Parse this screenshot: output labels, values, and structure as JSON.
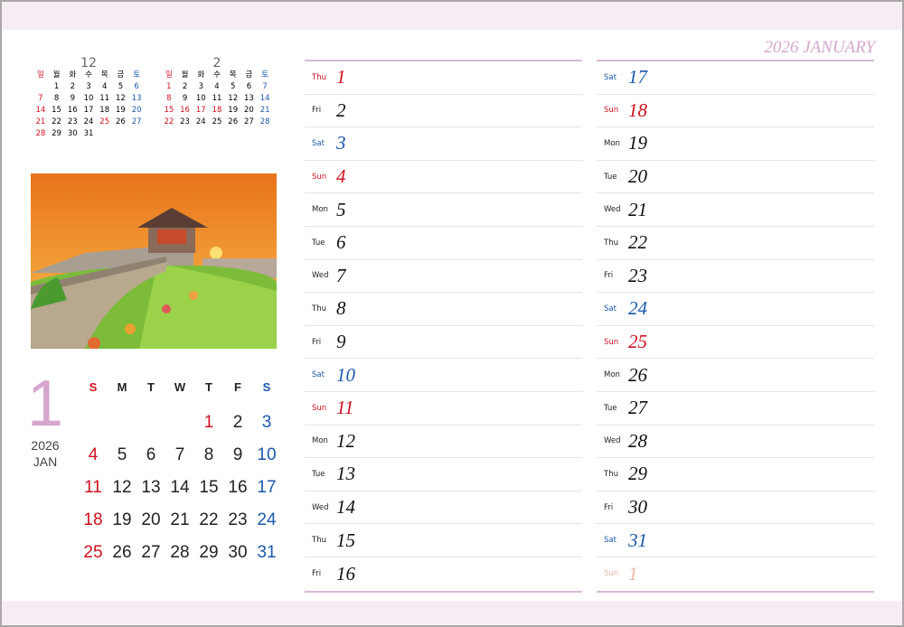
{
  "header": {
    "title": "2026 JANUARY"
  },
  "colors": {
    "accent": "#d6a6cf",
    "sunday": "#d0101e",
    "saturday": "#1b58ad",
    "band": "#f8ecf4"
  },
  "mini_calendars": [
    {
      "month": "12",
      "weekdays": [
        "일",
        "월",
        "화",
        "수",
        "목",
        "금",
        "토"
      ],
      "offset": 1,
      "days": [
        "1",
        "2",
        "3",
        "4",
        "5",
        "6",
        "7",
        "8",
        "9",
        "10",
        "11",
        "12",
        "13",
        "14",
        "15",
        "16",
        "17",
        "18",
        "19",
        "20",
        "21",
        "22",
        "23",
        "24",
        "25",
        "26",
        "27",
        "28",
        "29",
        "30",
        "31"
      ],
      "holidays": [
        "25"
      ]
    },
    {
      "month": "2",
      "weekdays": [
        "일",
        "월",
        "화",
        "수",
        "목",
        "금",
        "토"
      ],
      "offset": 0,
      "days": [
        "1",
        "2",
        "3",
        "4",
        "5",
        "6",
        "7",
        "8",
        "9",
        "10",
        "11",
        "12",
        "13",
        "14",
        "15",
        "16",
        "17",
        "18",
        "19",
        "20",
        "21",
        "22",
        "23",
        "24",
        "25",
        "26",
        "27",
        "28"
      ],
      "holidays": [
        "16",
        "17",
        "18"
      ]
    }
  ],
  "month_block": {
    "number": "1",
    "year": "2026",
    "abbr": "JAN",
    "weekdays": [
      "S",
      "M",
      "T",
      "W",
      "T",
      "F",
      "S"
    ],
    "offset": 4,
    "days": [
      "1",
      "2",
      "3",
      "4",
      "5",
      "6",
      "7",
      "8",
      "9",
      "10",
      "11",
      "12",
      "13",
      "14",
      "15",
      "16",
      "17",
      "18",
      "19",
      "20",
      "21",
      "22",
      "23",
      "24",
      "25",
      "26",
      "27",
      "28",
      "29",
      "30",
      "31"
    ],
    "holidays": [
      "1"
    ]
  },
  "day_list": [
    [
      {
        "wd": "Thu",
        "d": "1",
        "t": "red"
      },
      {
        "wd": "Fri",
        "d": "2",
        "t": ""
      },
      {
        "wd": "Sat",
        "d": "3",
        "t": "blue"
      },
      {
        "wd": "Sun",
        "d": "4",
        "t": "red"
      },
      {
        "wd": "Mon",
        "d": "5",
        "t": ""
      },
      {
        "wd": "Tue",
        "d": "6",
        "t": ""
      },
      {
        "wd": "Wed",
        "d": "7",
        "t": ""
      },
      {
        "wd": "Thu",
        "d": "8",
        "t": ""
      },
      {
        "wd": "Fri",
        "d": "9",
        "t": ""
      },
      {
        "wd": "Sat",
        "d": "10",
        "t": "blue"
      },
      {
        "wd": "Sun",
        "d": "11",
        "t": "red"
      },
      {
        "wd": "Mon",
        "d": "12",
        "t": ""
      },
      {
        "wd": "Tue",
        "d": "13",
        "t": ""
      },
      {
        "wd": "Wed",
        "d": "14",
        "t": ""
      },
      {
        "wd": "Thu",
        "d": "15",
        "t": ""
      },
      {
        "wd": "Fri",
        "d": "16",
        "t": ""
      }
    ],
    [
      {
        "wd": "Sat",
        "d": "17",
        "t": "blue"
      },
      {
        "wd": "Sun",
        "d": "18",
        "t": "red"
      },
      {
        "wd": "Mon",
        "d": "19",
        "t": ""
      },
      {
        "wd": "Tue",
        "d": "20",
        "t": ""
      },
      {
        "wd": "Wed",
        "d": "21",
        "t": ""
      },
      {
        "wd": "Thu",
        "d": "22",
        "t": ""
      },
      {
        "wd": "Fri",
        "d": "23",
        "t": ""
      },
      {
        "wd": "Sat",
        "d": "24",
        "t": "blue"
      },
      {
        "wd": "Sun",
        "d": "25",
        "t": "red"
      },
      {
        "wd": "Mon",
        "d": "26",
        "t": ""
      },
      {
        "wd": "Tue",
        "d": "27",
        "t": ""
      },
      {
        "wd": "Wed",
        "d": "28",
        "t": ""
      },
      {
        "wd": "Thu",
        "d": "29",
        "t": ""
      },
      {
        "wd": "Fri",
        "d": "30",
        "t": ""
      },
      {
        "wd": "Sat",
        "d": "31",
        "t": "blue"
      },
      {
        "wd": "Sun",
        "d": "1",
        "t": "next"
      }
    ]
  ]
}
